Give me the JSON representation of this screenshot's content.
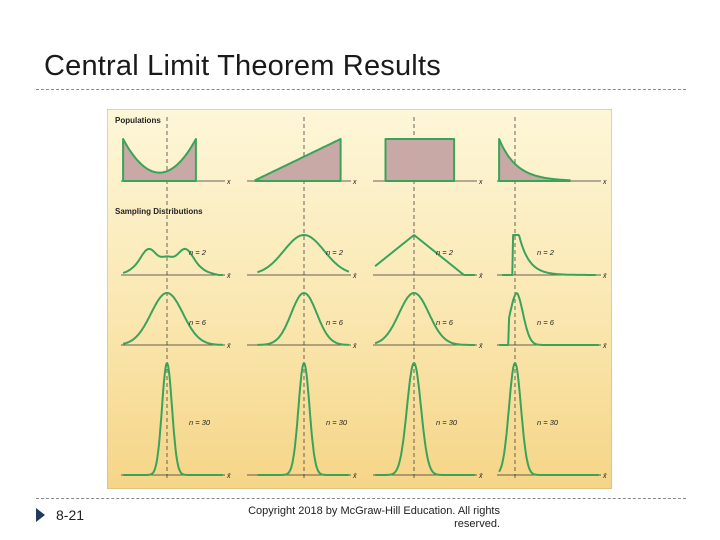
{
  "slide": {
    "title": "Central Limit Theorem Results",
    "slide_number": "8-21",
    "copyright": "Copyright 2018 by McGraw-Hill Education. All rights reserved."
  },
  "figure": {
    "populations_label": "Populations",
    "sampling_label": "Sampling Distributions",
    "population_axis_label": "x",
    "sample_axis_label": "x̄",
    "populations": [
      {
        "shape": "u-shaped"
      },
      {
        "shape": "right-triangular"
      },
      {
        "shape": "uniform"
      },
      {
        "shape": "exponential"
      }
    ],
    "sample_sizes": [
      {
        "label": "n = 2"
      },
      {
        "label": "n = 6"
      },
      {
        "label": "n = 30"
      }
    ],
    "colors": {
      "background_top": "#fdf6d8",
      "background_bottom": "#f6d98d",
      "curve": "#3aa35a",
      "fill": "#c9a9a6",
      "axis": "#333333"
    }
  }
}
